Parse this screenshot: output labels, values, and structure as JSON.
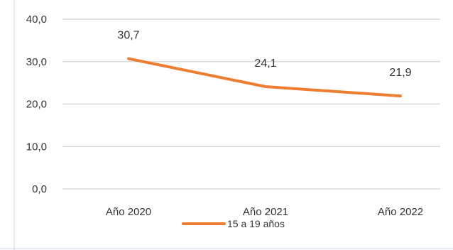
{
  "chart_data": {
    "type": "line",
    "categories": [
      "Año 2020",
      "Año 2021",
      "Año 2022"
    ],
    "series": [
      {
        "name": "15 a 19 años",
        "values": [
          30.7,
          24.1,
          21.9
        ],
        "data_labels": [
          "30,7",
          "24,1",
          "21,9"
        ],
        "color": "#ED7D31"
      }
    ],
    "ylim": [
      0,
      40
    ],
    "yticks": [
      0,
      10,
      20,
      30,
      40
    ],
    "ytick_labels": [
      "0,0",
      "10,0",
      "20,0",
      "30,0",
      "40,0"
    ],
    "grid": true,
    "legend_position": "bottom",
    "colors": {
      "grid": "#D9D9D9",
      "text": "#333333",
      "frame": "#C9D7EA"
    }
  }
}
